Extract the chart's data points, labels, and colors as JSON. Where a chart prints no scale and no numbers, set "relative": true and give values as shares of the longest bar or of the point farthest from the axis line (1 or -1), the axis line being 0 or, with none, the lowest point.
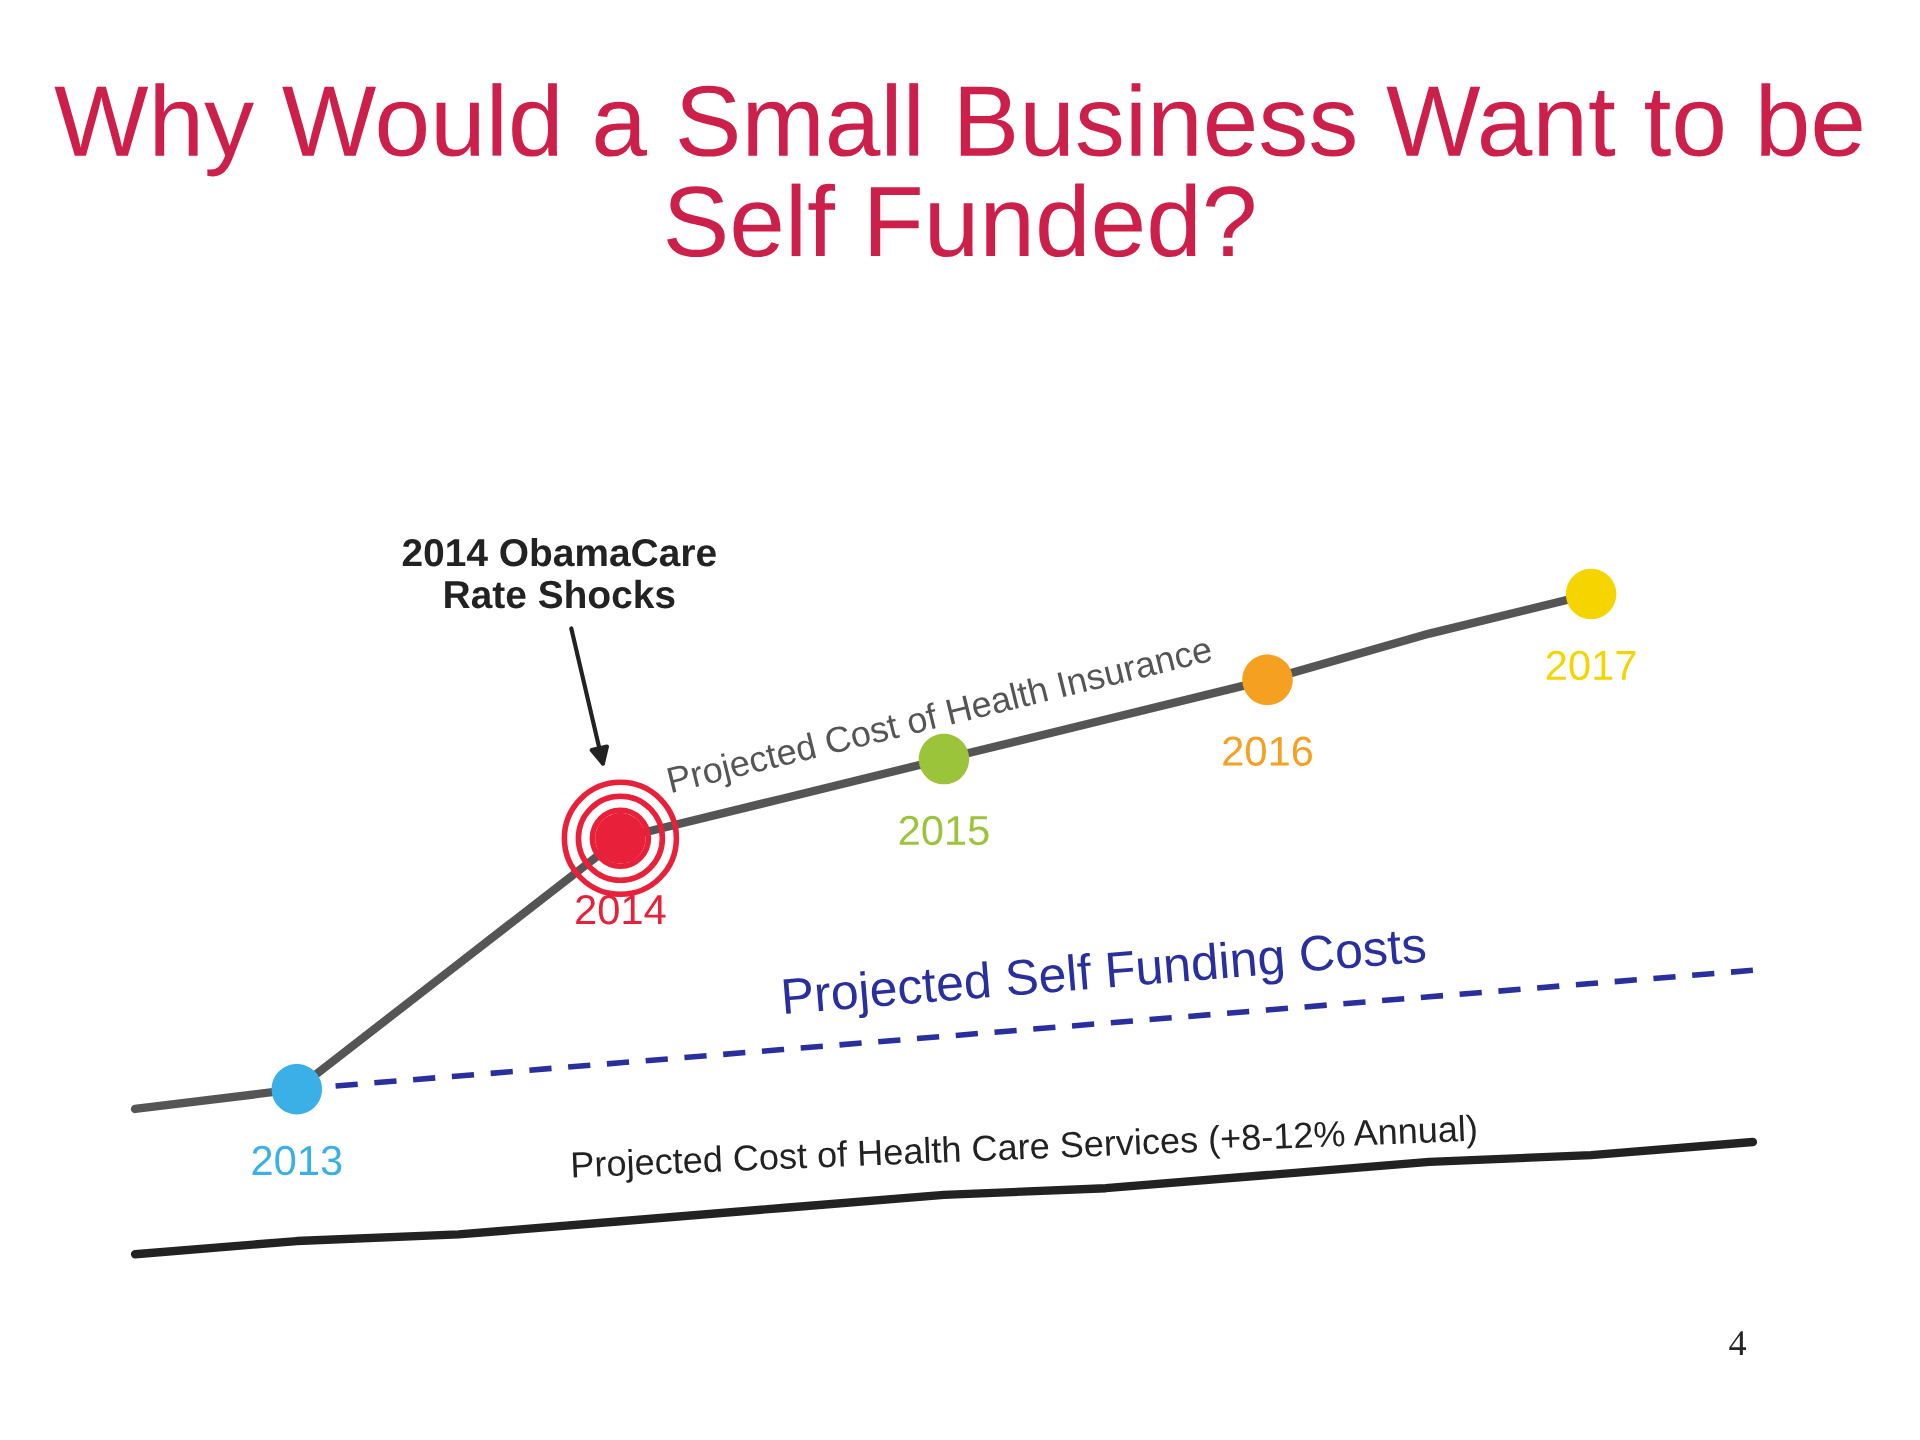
{
  "chart_data": {
    "type": "line",
    "title": "Why Would a Small Business Want to be Self Funded?",
    "relative": true,
    "grid": false,
    "legend": false,
    "categories": [
      null,
      null,
      null,
      null,
      null,
      null,
      null,
      null,
      null,
      null,
      null
    ],
    "series": [
      {
        "name": "Projected Cost of Health Insurance",
        "color": "#555555",
        "values": [
          0.22,
          0.25,
          0.44,
          0.63,
          0.69,
          0.75,
          0.81,
          0.87,
          0.94,
          1.0,
          null
        ],
        "line_style": "solid",
        "marker": "circle",
        "colors": [
          null,
          "#3bb0e6",
          null,
          "#e8203a",
          null,
          "#9cc43a",
          null,
          "#f5a020",
          null,
          "#f5d400",
          null
        ]
      },
      {
        "name": "Projected Self Funding Costs",
        "color": "#2a2f9e",
        "values": [
          null,
          0.25,
          0.27,
          0.29,
          0.31,
          0.33,
          0.35,
          0.37,
          0.39,
          0.41,
          0.43
        ],
        "line_style": "dashed"
      },
      {
        "name": "Projected Cost of Health Care Services (+8-12% Annual)",
        "color": "#222222",
        "values": [
          0.0,
          0.02,
          0.03,
          0.05,
          0.07,
          0.09,
          0.1,
          0.12,
          0.14,
          0.15,
          0.17
        ],
        "line_style": "solid"
      }
    ],
    "annotations": [
      "2013",
      "2014",
      "2015",
      "2016",
      "2017",
      "2014 ObamaCare\nRate Shocks",
      "4"
    ]
  }
}
